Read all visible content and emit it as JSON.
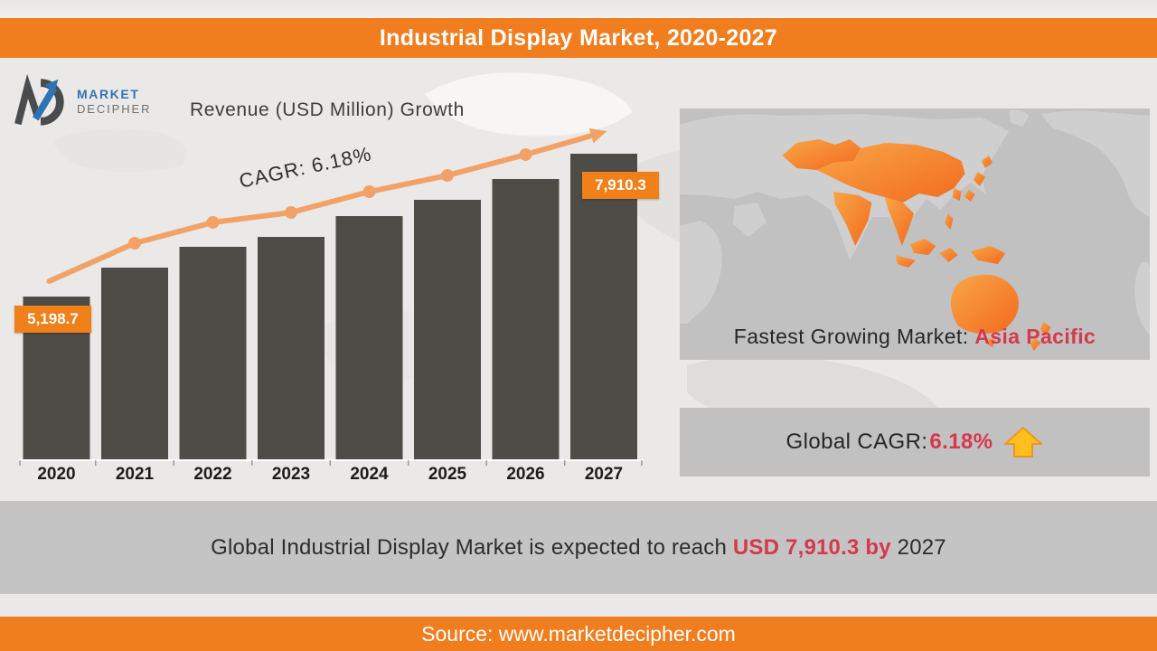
{
  "title_bar": {
    "text": "Industrial Display Market, 2020-2027"
  },
  "logo": {
    "market": "MARKET",
    "decipher": "DECIPHER"
  },
  "chart_data": {
    "type": "bar",
    "title": "Revenue (USD Million) Growth",
    "categories": [
      "2020",
      "2021",
      "2022",
      "2023",
      "2024",
      "2025",
      "2026",
      "2027"
    ],
    "values": [
      5198.7,
      5748,
      6143,
      6331,
      6726,
      7035,
      7430,
      7910.3
    ],
    "data_labels": {
      "first": "5,198.7",
      "last": "7,910.3"
    },
    "trendline": {
      "label": "CAGR: 6.18%",
      "cagr_percent": 6.18,
      "color": "#F2A266"
    },
    "bar_color": "#4D4C46",
    "ylim": [
      5198.7,
      7910.3
    ],
    "xlabel": "",
    "ylabel": "Revenue (USD Million)",
    "grid": false,
    "legend": false
  },
  "map_panel": {
    "caption_prefix": "Fastest Growing Market: ",
    "caption_highlight": "Asia Pacific"
  },
  "cagr_panel": {
    "prefix": "Global CAGR: ",
    "value": "6.18%",
    "arrow_icon": "up-arrow"
  },
  "banner": {
    "prefix": "Global Industrial Display Market is expected to reach ",
    "highlight": "USD 7,910.3  by",
    "suffix": " 2027"
  },
  "source_bar": {
    "text": "Source: www.marketdecipher.com"
  },
  "colors": {
    "accent_orange": "#F07D1E",
    "trend_orange": "#F2A266",
    "bar_dark": "#4D4C46",
    "highlight_red": "#D5394B",
    "panel_gray": "#C1C1C1",
    "banner_gray": "#C4C4C4",
    "arrow_gold": "#FFC01E",
    "logo_blue": "#2E74B5"
  }
}
